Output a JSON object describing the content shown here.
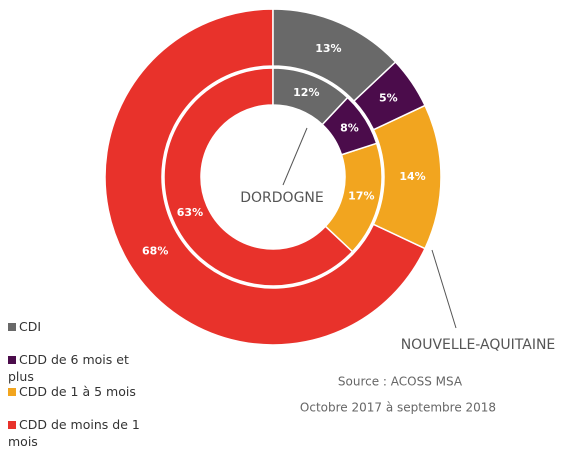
{
  "chart_data": {
    "type": "donut",
    "categories": [
      "CDI",
      "CDD de 6 mois et plus",
      "CDD de 1 à 5 mois",
      "CDD de moins de 1 mois"
    ],
    "colors": [
      "#696969",
      "#4b0c4b",
      "#f2a51f",
      "#e8322b"
    ],
    "series": [
      {
        "name": "NOUVELLE-AQUITAINE",
        "values": [
          13,
          5,
          14,
          68
        ],
        "value_labels": [
          "13%",
          "5%",
          "14%",
          "68%"
        ]
      },
      {
        "name": "DORDOGNE",
        "values": [
          12,
          8,
          17,
          63
        ],
        "value_labels": [
          "12%",
          "8%",
          "17%",
          "63%"
        ]
      }
    ],
    "notes": [
      "Source : ACOSS MSA",
      "Octobre 2017 à septembre 2018"
    ]
  }
}
